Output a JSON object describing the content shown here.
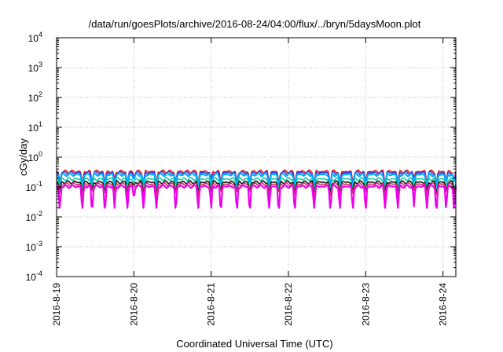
{
  "chart_data": {
    "type": "line",
    "title": "/data/run/goesPlots/archive/2016-08-24/04:00/flux/../bryn/5daysMoon.plot",
    "xlabel": "Coordinated Universal Time (UTC)",
    "ylabel": "cGy/day",
    "yscale": "log",
    "ylim": [
      0.0001,
      10000
    ],
    "xlim": [
      "2016-08-19",
      "2016-08-24 04:00"
    ],
    "grid": true,
    "xticks": [
      {
        "value": "2016-08-19",
        "label": "2016-8-19"
      },
      {
        "value": "2016-08-20",
        "label": "2016-8-20"
      },
      {
        "value": "2016-08-21",
        "label": "2016-8-21"
      },
      {
        "value": "2016-08-22",
        "label": "2016-8-22"
      },
      {
        "value": "2016-08-23",
        "label": "2016-8-23"
      },
      {
        "value": "2016-08-24",
        "label": "2016-8-24"
      }
    ],
    "yticks": [
      {
        "base": "10",
        "exp": "-4",
        "value": 0.0001
      },
      {
        "base": "10",
        "exp": "-3",
        "value": 0.001
      },
      {
        "base": "10",
        "exp": "-2",
        "value": 0.01
      },
      {
        "base": "10",
        "exp": "-1",
        "value": 0.1
      },
      {
        "base": "10",
        "exp": "0",
        "value": 1
      },
      {
        "base": "10",
        "exp": "1",
        "value": 10
      },
      {
        "base": "10",
        "exp": "2",
        "value": 100
      },
      {
        "base": "10",
        "exp": "3",
        "value": 1000
      },
      {
        "base": "10",
        "exp": "4",
        "value": 10000
      }
    ],
    "series": [
      {
        "color": "#ee1111",
        "level": 0.33,
        "dip": 0.45
      },
      {
        "color": "#3333dd",
        "level": 0.3,
        "dip": 0.45
      },
      {
        "color": "#00aaff",
        "level": 0.26,
        "dip": 0.5
      },
      {
        "color": "#11ccaa",
        "level": 0.185,
        "dip": 0.55
      },
      {
        "color": "#111111",
        "level": 0.145,
        "dip": 0.6
      },
      {
        "color": "#cc3366",
        "level": 0.125,
        "dip": 0.6
      },
      {
        "color": "#ee00ee",
        "level": 0.105,
        "dip": 0.3
      }
    ],
    "dips": [
      {
        "x": "2016-08-19 01:00",
        "depth": 0.7
      },
      {
        "x": "2016-08-19 08:00",
        "depth": 0.8
      },
      {
        "x": "2016-08-19 11:00",
        "depth": 0.7
      },
      {
        "x": "2016-08-19 15:00",
        "depth": 0.75
      },
      {
        "x": "2016-08-19 18:00",
        "depth": 0.6
      },
      {
        "x": "2016-08-19 22:00",
        "depth": 0.8
      },
      {
        "x": "2016-08-20 00:00",
        "depth": 0.35
      },
      {
        "x": "2016-08-20 03:00",
        "depth": 0.75
      },
      {
        "x": "2016-08-20 07:00",
        "depth": 0.8
      },
      {
        "x": "2016-08-20 13:00",
        "depth": 0.7
      },
      {
        "x": "2016-08-20 20:00",
        "depth": 0.75
      },
      {
        "x": "2016-08-21 00:00",
        "depth": 0.6
      },
      {
        "x": "2016-08-21 03:00",
        "depth": 0.7
      },
      {
        "x": "2016-08-21 08:00",
        "depth": 0.75
      },
      {
        "x": "2016-08-21 12:00",
        "depth": 0.7
      },
      {
        "x": "2016-08-21 18:00",
        "depth": 0.8
      },
      {
        "x": "2016-08-21 21:00",
        "depth": 0.75
      },
      {
        "x": "2016-08-22 02:00",
        "depth": 0.8
      },
      {
        "x": "2016-08-22 08:00",
        "depth": 0.8
      },
      {
        "x": "2016-08-22 13:00",
        "depth": 0.8
      },
      {
        "x": "2016-08-22 16:00",
        "depth": 0.75
      },
      {
        "x": "2016-08-22 20:00",
        "depth": 0.75
      },
      {
        "x": "2016-08-23 00:00",
        "depth": 0.7
      },
      {
        "x": "2016-08-23 06:00",
        "depth": 0.8
      },
      {
        "x": "2016-08-23 10:00",
        "depth": 0.75
      },
      {
        "x": "2016-08-23 15:00",
        "depth": 0.5
      },
      {
        "x": "2016-08-23 19:00",
        "depth": 0.75
      },
      {
        "x": "2016-08-23 22:00",
        "depth": 0.8
      },
      {
        "x": "2016-08-24 01:00",
        "depth": 0.6
      },
      {
        "x": "2016-08-24 03:30",
        "depth": 0.7
      }
    ]
  }
}
